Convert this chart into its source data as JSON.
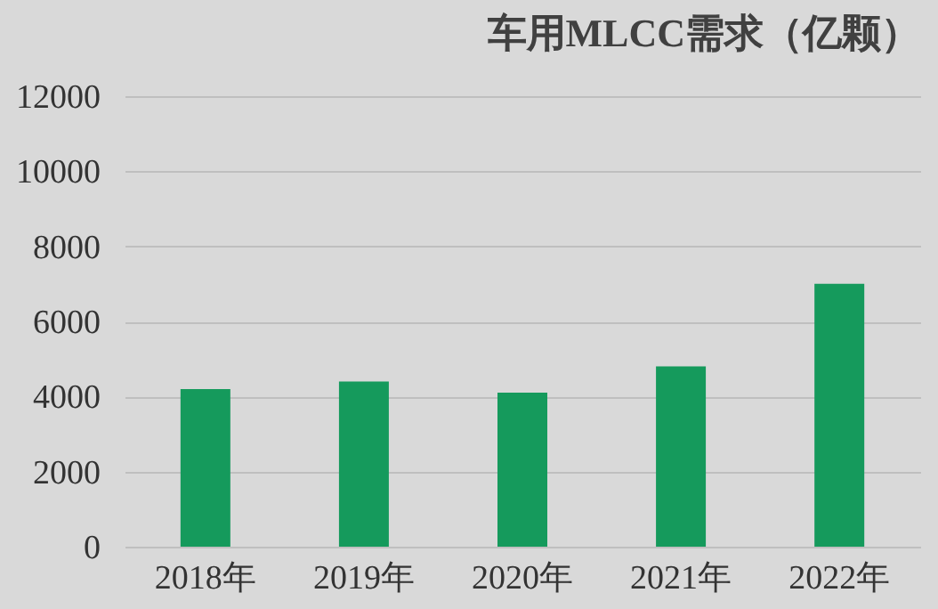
{
  "chart_data": {
    "type": "bar",
    "title": "车用MLCC需求（亿颗）",
    "categories": [
      "2018年",
      "2019年",
      "2020年",
      "2021年",
      "2022年"
    ],
    "values": [
      4200,
      4400,
      4100,
      4800,
      7000
    ],
    "color": "#159a5c",
    "ylim": [
      0,
      12000
    ],
    "yticks": [
      0,
      2000,
      4000,
      6000,
      8000,
      10000,
      12000
    ],
    "grid": "y"
  }
}
